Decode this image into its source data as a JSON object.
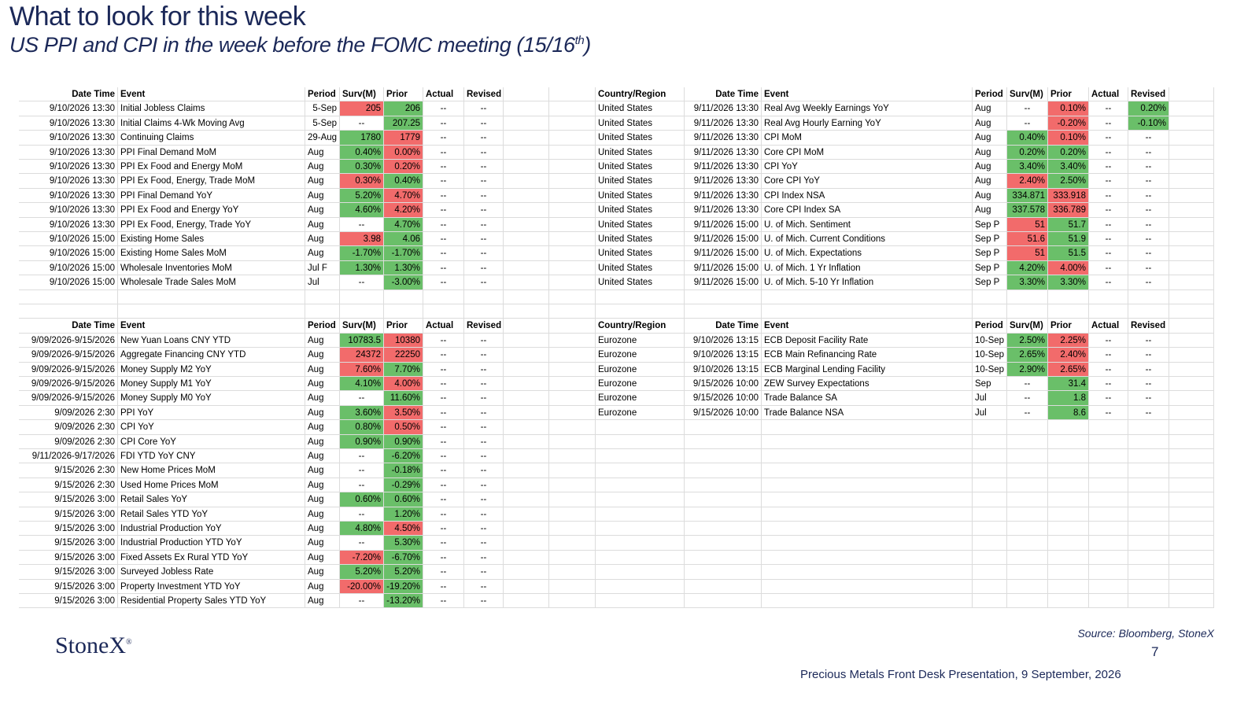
{
  "header": {
    "title": "What to look for this week",
    "subtitle": {
      "main": "US PPI and CPI in the week before the FOMC meeting (15/16",
      "sup": "th",
      "close": ")"
    }
  },
  "tables": [
    {
      "columns": [
        "Date Time",
        "Event",
        "Period",
        "Surv(M)",
        "Prior",
        "Actual",
        "Revised"
      ],
      "rows": [
        [
          "9/10/2026 13:30",
          "Initial Jobless Claims",
          "5-Sep",
          {
            "text": "205",
            "fill": "#f26b6b"
          },
          {
            "text": "206",
            "fill": "#6abf69"
          },
          "--",
          "--"
        ],
        [
          "9/10/2026 13:30",
          "Initial Claims 4-Wk Moving Avg",
          "5-Sep",
          "--",
          {
            "text": "207.25",
            "fill": "#6abf69"
          },
          "--",
          "--"
        ],
        [
          "9/10/2026 13:30",
          "Continuing Claims",
          "29-Aug",
          {
            "text": "1780",
            "fill": "#6abf69"
          },
          {
            "text": "1779",
            "fill": "#f26b6b"
          },
          "--",
          "--"
        ],
        [
          "9/10/2026 13:30",
          "PPI Final Demand MoM",
          "Aug",
          {
            "text": "0.40%",
            "fill": "#6abf69"
          },
          {
            "text": "0.00%",
            "fill": "#f26b6b"
          },
          "--",
          "--"
        ],
        [
          "9/10/2026 13:30",
          "PPI Ex Food and Energy MoM",
          "Aug",
          {
            "text": "0.30%",
            "fill": "#6abf69"
          },
          {
            "text": "0.20%",
            "fill": "#f26b6b"
          },
          "--",
          "--"
        ],
        [
          "9/10/2026 13:30",
          "PPI Ex Food, Energy, Trade MoM",
          "Aug",
          {
            "text": "0.30%",
            "fill": "#f26b6b"
          },
          {
            "text": "0.40%",
            "fill": "#6abf69"
          },
          "--",
          "--"
        ],
        [
          "9/10/2026 13:30",
          "PPI Final Demand YoY",
          "Aug",
          {
            "text": "5.20%",
            "fill": "#6abf69"
          },
          {
            "text": "4.70%",
            "fill": "#f26b6b"
          },
          "--",
          "--"
        ],
        [
          "9/10/2026 13:30",
          "PPI Ex Food and Energy YoY",
          "Aug",
          {
            "text": "4.60%",
            "fill": "#6abf69"
          },
          {
            "text": "4.20%",
            "fill": "#f26b6b"
          },
          "--",
          "--"
        ],
        [
          "9/10/2026 13:30",
          "PPI Ex Food, Energy, Trade YoY",
          "Aug",
          "--",
          {
            "text": "4.70%",
            "fill": "#6abf69"
          },
          "--",
          "--"
        ],
        [
          "9/10/2026 15:00",
          "Existing Home Sales",
          "Aug",
          {
            "text": "3.98",
            "fill": "#f26b6b"
          },
          {
            "text": "4.06",
            "fill": "#6abf69"
          },
          "--",
          "--"
        ],
        [
          "9/10/2026 15:00",
          "Existing Home Sales MoM",
          "Aug",
          {
            "text": "-1.70%",
            "fill": "#6abf69"
          },
          {
            "text": "-1.70%",
            "fill": "#6abf69"
          },
          "--",
          "--"
        ],
        [
          "9/10/2026 15:00",
          "Wholesale Inventories MoM",
          "Jul F",
          {
            "text": "1.30%",
            "fill": "#6abf69"
          },
          {
            "text": "1.30%",
            "fill": "#6abf69"
          },
          "--",
          "--"
        ],
        [
          "9/10/2026 15:00",
          "Wholesale Trade Sales MoM",
          "Jul",
          "--",
          {
            "text": "-3.00%",
            "fill": "#6abf69"
          },
          "--",
          "--"
        ]
      ]
    },
    {
      "columns": [
        "Country/Region",
        "Date Time",
        "Event",
        "Period",
        "Surv(M)",
        "Prior",
        "Actual",
        "Revised"
      ],
      "rows": [
        [
          "United States",
          "9/11/2026 13:30",
          "Real Avg Weekly Earnings YoY",
          "Aug",
          "--",
          {
            "text": "0.10%",
            "fill": "#f26b6b"
          },
          "--",
          {
            "text": "0.20%",
            "fill": "#6abf69"
          }
        ],
        [
          "United States",
          "9/11/2026 13:30",
          "Real Avg Hourly Earning YoY",
          "Aug",
          "--",
          {
            "text": "-0.20%",
            "fill": "#f26b6b"
          },
          "--",
          {
            "text": "-0.10%",
            "fill": "#6abf69"
          }
        ],
        [
          "United States",
          "9/11/2026 13:30",
          "CPI MoM",
          "Aug",
          {
            "text": "0.40%",
            "fill": "#6abf69"
          },
          {
            "text": "0.10%",
            "fill": "#f26b6b"
          },
          "--",
          "--"
        ],
        [
          "United States",
          "9/11/2026 13:30",
          "Core CPI MoM",
          "Aug",
          {
            "text": "0.20%",
            "fill": "#6abf69"
          },
          {
            "text": "0.20%",
            "fill": "#6abf69"
          },
          "--",
          "--"
        ],
        [
          "United States",
          "9/11/2026 13:30",
          "CPI YoY",
          "Aug",
          {
            "text": "3.40%",
            "fill": "#6abf69"
          },
          {
            "text": "3.40%",
            "fill": "#6abf69"
          },
          "--",
          "--"
        ],
        [
          "United States",
          "9/11/2026 13:30",
          "Core CPI YoY",
          "Aug",
          {
            "text": "2.40%",
            "fill": "#f26b6b"
          },
          {
            "text": "2.50%",
            "fill": "#6abf69"
          },
          "--",
          "--"
        ],
        [
          "United States",
          "9/11/2026 13:30",
          "CPI Index NSA",
          "Aug",
          {
            "text": "334.871",
            "fill": "#6abf69"
          },
          {
            "text": "333.918",
            "fill": "#f26b6b"
          },
          "--",
          "--"
        ],
        [
          "United States",
          "9/11/2026 13:30",
          "Core CPI Index SA",
          "Aug",
          {
            "text": "337.578",
            "fill": "#6abf69"
          },
          {
            "text": "336.789",
            "fill": "#f26b6b"
          },
          "--",
          "--"
        ],
        [
          "United States",
          "9/11/2026 15:00",
          "U. of Mich. Sentiment",
          "Sep P",
          {
            "text": "51",
            "fill": "#f26b6b"
          },
          {
            "text": "51.7",
            "fill": "#6abf69"
          },
          "--",
          "--"
        ],
        [
          "United States",
          "9/11/2026 15:00",
          "U. of Mich. Current Conditions",
          "Sep P",
          {
            "text": "51.6",
            "fill": "#f26b6b"
          },
          {
            "text": "51.9",
            "fill": "#6abf69"
          },
          "--",
          "--"
        ],
        [
          "United States",
          "9/11/2026 15:00",
          "U. of Mich. Expectations",
          "Sep P",
          {
            "text": "51",
            "fill": "#f26b6b"
          },
          {
            "text": "51.5",
            "fill": "#6abf69"
          },
          "--",
          "--"
        ],
        [
          "United States",
          "9/11/2026 15:00",
          "U. of Mich. 1 Yr Inflation",
          "Sep P",
          {
            "text": "4.20%",
            "fill": "#6abf69"
          },
          {
            "text": "4.00%",
            "fill": "#f26b6b"
          },
          "--",
          "--"
        ],
        [
          "United States",
          "9/11/2026 15:00",
          "U. of Mich. 5-10 Yr Inflation",
          "Sep P",
          {
            "text": "3.30%",
            "fill": "#6abf69"
          },
          {
            "text": "3.30%",
            "fill": "#6abf69"
          },
          "--",
          "--"
        ]
      ]
    },
    {
      "columns": [
        "Date Time",
        "Event",
        "Period",
        "Surv(M)",
        "Prior",
        "Actual",
        "Revised"
      ],
      "rows": [
        [
          "9/09/2026-9/15/2026",
          "New Yuan Loans CNY YTD",
          "Aug",
          {
            "text": "10783.5",
            "fill": "#6abf69"
          },
          {
            "text": "10380",
            "fill": "#f26b6b"
          },
          "--",
          "--"
        ],
        [
          "9/09/2026-9/15/2026",
          "Aggregate Financing CNY YTD",
          "Aug",
          {
            "text": "24372",
            "fill": "#f26b6b"
          },
          {
            "text": "22250",
            "fill": "#f26b6b"
          },
          "--",
          "--"
        ],
        [
          "9/09/2026-9/15/2026",
          "Money Supply M2 YoY",
          "Aug",
          {
            "text": "7.60%",
            "fill": "#f26b6b"
          },
          {
            "text": "7.70%",
            "fill": "#6abf69"
          },
          "--",
          "--"
        ],
        [
          "9/09/2026-9/15/2026",
          "Money Supply M1 YoY",
          "Aug",
          {
            "text": "4.10%",
            "fill": "#6abf69"
          },
          {
            "text": "4.00%",
            "fill": "#f26b6b"
          },
          "--",
          "--"
        ],
        [
          "9/09/2026-9/15/2026",
          "Money Supply M0 YoY",
          "Aug",
          "--",
          {
            "text": "11.60%",
            "fill": "#6abf69"
          },
          "--",
          "--"
        ],
        [
          "9/09/2026 2:30",
          "PPI YoY",
          "Aug",
          {
            "text": "3.60%",
            "fill": "#6abf69"
          },
          {
            "text": "3.50%",
            "fill": "#f26b6b"
          },
          "--",
          "--"
        ],
        [
          "9/09/2026 2:30",
          "CPI YoY",
          "Aug",
          {
            "text": "0.80%",
            "fill": "#6abf69"
          },
          {
            "text": "0.50%",
            "fill": "#f26b6b"
          },
          "--",
          "--"
        ],
        [
          "9/09/2026 2:30",
          "CPI Core YoY",
          "Aug",
          {
            "text": "0.90%",
            "fill": "#6abf69"
          },
          {
            "text": "0.90%",
            "fill": "#6abf69"
          },
          "--",
          "--"
        ],
        [
          "9/11/2026-9/17/2026",
          "FDI YTD YoY CNY",
          "Aug",
          "--",
          {
            "text": "-6.20%",
            "fill": "#6abf69"
          },
          "--",
          "--"
        ],
        [
          "9/15/2026 2:30",
          "New Home Prices MoM",
          "Aug",
          "--",
          {
            "text": "-0.18%",
            "fill": "#6abf69"
          },
          "--",
          "--"
        ],
        [
          "9/15/2026 2:30",
          "Used Home Prices MoM",
          "Aug",
          "--",
          {
            "text": "-0.29%",
            "fill": "#6abf69"
          },
          "--",
          "--"
        ],
        [
          "9/15/2026 3:00",
          "Retail Sales YoY",
          "Aug",
          {
            "text": "0.60%",
            "fill": "#6abf69"
          },
          {
            "text": "0.60%",
            "fill": "#6abf69"
          },
          "--",
          "--"
        ],
        [
          "9/15/2026 3:00",
          "Retail Sales YTD YoY",
          "Aug",
          "--",
          {
            "text": "1.20%",
            "fill": "#6abf69"
          },
          "--",
          "--"
        ],
        [
          "9/15/2026 3:00",
          "Industrial Production YoY",
          "Aug",
          {
            "text": "4.80%",
            "fill": "#6abf69"
          },
          {
            "text": "4.50%",
            "fill": "#f26b6b"
          },
          "--",
          "--"
        ],
        [
          "9/15/2026 3:00",
          "Industrial Production YTD YoY",
          "Aug",
          "--",
          {
            "text": "5.30%",
            "fill": "#6abf69"
          },
          "--",
          "--"
        ],
        [
          "9/15/2026 3:00",
          "Fixed Assets Ex Rural YTD YoY",
          "Aug",
          {
            "text": "-7.20%",
            "fill": "#f26b6b"
          },
          {
            "text": "-6.70%",
            "fill": "#6abf69"
          },
          "--",
          "--"
        ],
        [
          "9/15/2026 3:00",
          "Surveyed Jobless Rate",
          "Aug",
          {
            "text": "5.20%",
            "fill": "#6abf69"
          },
          {
            "text": "5.20%",
            "fill": "#6abf69"
          },
          "--",
          "--"
        ],
        [
          "9/15/2026 3:00",
          "Property Investment YTD YoY",
          "Aug",
          {
            "text": "-20.00%",
            "fill": "#f26b6b"
          },
          {
            "text": "-19.20%",
            "fill": "#6abf69"
          },
          "--",
          "--"
        ],
        [
          "9/15/2026 3:00",
          "Residential Property Sales YTD YoY",
          "Aug",
          "--",
          {
            "text": "-13.20%",
            "fill": "#6abf69"
          },
          "--",
          "--"
        ]
      ]
    },
    {
      "columns": [
        "Country/Region",
        "Date Time",
        "Event",
        "Period",
        "Surv(M)",
        "Prior",
        "Actual",
        "Revised"
      ],
      "rows": [
        [
          "Eurozone",
          "9/10/2026 13:15",
          "ECB Deposit Facility Rate",
          "10-Sep",
          {
            "text": "2.50%",
            "fill": "#6abf69"
          },
          {
            "text": "2.25%",
            "fill": "#f26b6b"
          },
          "--",
          "--"
        ],
        [
          "Eurozone",
          "9/10/2026 13:15",
          "ECB Main Refinancing Rate",
          "10-Sep",
          {
            "text": "2.65%",
            "fill": "#6abf69"
          },
          {
            "text": "2.40%",
            "fill": "#f26b6b"
          },
          "--",
          "--"
        ],
        [
          "Eurozone",
          "9/10/2026 13:15",
          "ECB Marginal Lending Facility",
          "10-Sep",
          {
            "text": "2.90%",
            "fill": "#6abf69"
          },
          {
            "text": "2.65%",
            "fill": "#f26b6b"
          },
          "--",
          "--"
        ],
        [
          "Eurozone",
          "9/15/2026 10:00",
          "ZEW Survey Expectations",
          "Sep",
          "--",
          {
            "text": "31.4",
            "fill": "#6abf69"
          },
          "--",
          "--"
        ],
        [
          "Eurozone",
          "9/15/2026 10:00",
          "Trade Balance SA",
          "Jul",
          "--",
          {
            "text": "1.8",
            "fill": "#6abf69"
          },
          "--",
          "--"
        ],
        [
          "Eurozone",
          "9/15/2026 10:00",
          "Trade Balance NSA",
          "Jul",
          "--",
          {
            "text": "8.6",
            "fill": "#6abf69"
          },
          "--",
          "--"
        ]
      ]
    }
  ],
  "footer": {
    "logo": "StoneX",
    "logo_mark": "®",
    "source": "Source: Bloomberg, StoneX",
    "page": "7",
    "presentation": "Precious Metals Front Desk Presentation, 9 September, 2026"
  }
}
